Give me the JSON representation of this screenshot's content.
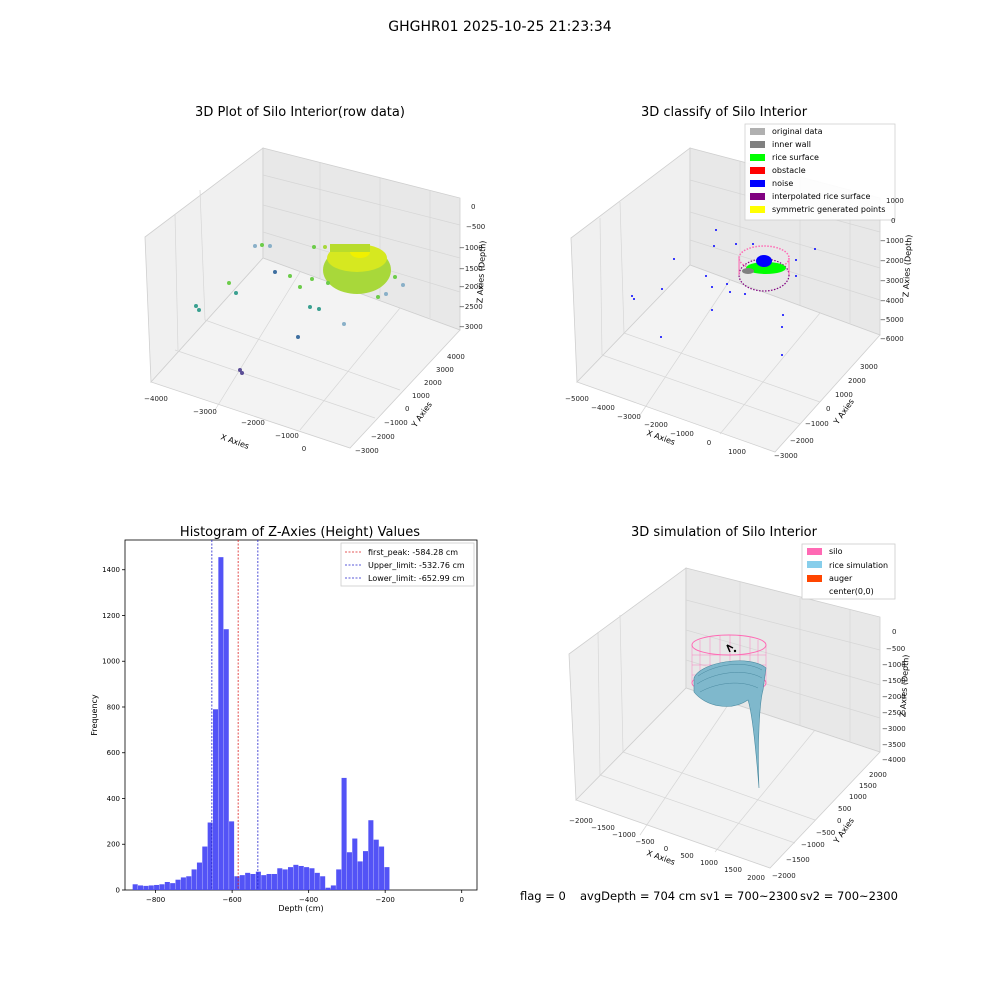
{
  "figure": {
    "suptitle": "GHGHR01 2025-10-25 21:23:34"
  },
  "status_line": {
    "flag": "flag = 0",
    "avg_depth": "avgDepth = 704 cm",
    "sv1": "sv1 = 700~2300",
    "sv2": "sv2 = 700~2300"
  },
  "chart_data": [
    {
      "type": "scatter",
      "title": "3D Plot of Silo Interior(row data)",
      "xlabel": "X Axies",
      "ylabel": "Y Axies",
      "zlabel": "Z Axies (Depth)",
      "x_ticks": [
        "−4000",
        "−3000",
        "−2000",
        "−1000",
        "0"
      ],
      "y_ticks": [
        "−3000",
        "−2000",
        "−1000",
        "0",
        "1000",
        "2000",
        "3000",
        "4000"
      ],
      "z_ticks": [
        "0",
        "−500",
        "−1000",
        "−1500",
        "−2000",
        "−2500",
        "−3000"
      ],
      "colors": {
        "surface": "#a8d83a",
        "points": [
          "#6ccc4a",
          "#3aa090",
          "#3e6fa0",
          "#8ab0c8",
          "#5b4e96"
        ]
      }
    },
    {
      "type": "scatter",
      "title": "3D classify of Silo Interior",
      "xlabel": "X Axies",
      "ylabel": "Y Axies",
      "zlabel": "Z Axies (Depth)",
      "x_ticks": [
        "−5000",
        "−4000",
        "−3000",
        "−2000",
        "−1000",
        "0",
        "1000"
      ],
      "y_ticks": [
        "−3000",
        "−2000",
        "−1000",
        "0",
        "1000",
        "2000",
        "3000"
      ],
      "z_ticks": [
        "1000",
        "0",
        "−1000",
        "−2000",
        "−3000",
        "−4000",
        "−5000",
        "−6000"
      ],
      "legend": [
        {
          "label": "original data",
          "color": "#b0b0b0"
        },
        {
          "label": "inner wall",
          "color": "#808080"
        },
        {
          "label": "rice surface",
          "color": "#00ff00"
        },
        {
          "label": "obstacle",
          "color": "#ff0000"
        },
        {
          "label": "noise",
          "color": "#0000ff"
        },
        {
          "label": "interpolated rice surface",
          "color": "#800080"
        },
        {
          "label": "symmetric generated points",
          "color": "#ffff00"
        }
      ]
    },
    {
      "type": "bar",
      "title": "Histogram of Z-Axies (Height) Values",
      "xlabel": "Depth (cm)",
      "ylabel": "Frequency",
      "xlim": [
        -880,
        40
      ],
      "ylim": [
        0,
        1530
      ],
      "bin_width": 14,
      "x_ticks": [
        -800,
        -600,
        -400,
        -200,
        0
      ],
      "y_ticks": [
        0,
        200,
        400,
        600,
        800,
        1000,
        1200,
        1400
      ],
      "bar_color": "#4a4af5",
      "bins": [
        [
          -860,
          25
        ],
        [
          -846,
          20
        ],
        [
          -832,
          18
        ],
        [
          -818,
          20
        ],
        [
          -804,
          22
        ],
        [
          -790,
          25
        ],
        [
          -776,
          35
        ],
        [
          -762,
          30
        ],
        [
          -748,
          45
        ],
        [
          -734,
          55
        ],
        [
          -720,
          60
        ],
        [
          -706,
          90
        ],
        [
          -692,
          120
        ],
        [
          -678,
          190
        ],
        [
          -664,
          295
        ],
        [
          -650,
          790
        ],
        [
          -636,
          1455
        ],
        [
          -622,
          1140
        ],
        [
          -608,
          300
        ],
        [
          -594,
          60
        ],
        [
          -580,
          65
        ],
        [
          -566,
          75
        ],
        [
          -552,
          70
        ],
        [
          -538,
          80
        ],
        [
          -524,
          65
        ],
        [
          -510,
          70
        ],
        [
          -496,
          70
        ],
        [
          -482,
          95
        ],
        [
          -468,
          90
        ],
        [
          -454,
          100
        ],
        [
          -440,
          110
        ],
        [
          -426,
          105
        ],
        [
          -412,
          100
        ],
        [
          -398,
          95
        ],
        [
          -384,
          75
        ],
        [
          -370,
          60
        ],
        [
          -356,
          10
        ],
        [
          -342,
          20
        ],
        [
          -328,
          90
        ],
        [
          -314,
          490
        ],
        [
          -300,
          165
        ],
        [
          -286,
          225
        ],
        [
          -272,
          125
        ],
        [
          -258,
          170
        ],
        [
          -244,
          305
        ],
        [
          -230,
          220
        ],
        [
          -216,
          190
        ],
        [
          -202,
          100
        ]
      ],
      "vlines": [
        {
          "label": "first_peak: -584.28 cm",
          "x": -584.28,
          "color": "#dd2222"
        },
        {
          "label": "Upper_limit: -532.76 cm",
          "x": -532.76,
          "color": "#2222cc"
        },
        {
          "label": "Lower_limit: -652.99 cm",
          "x": -652.99,
          "color": "#2222cc"
        }
      ]
    },
    {
      "type": "area",
      "title": "3D simulation of Silo Interior",
      "xlabel": "X Axies",
      "ylabel": "Y Axies",
      "zlabel": "Z Axies (Depth)",
      "x_ticks": [
        "−2000",
        "−1500",
        "−1000",
        "−500",
        "0",
        "500",
        "1000",
        "1500",
        "2000"
      ],
      "y_ticks": [
        "−2000",
        "−1500",
        "−1000",
        "−500",
        "0",
        "500",
        "1000",
        "1500",
        "2000"
      ],
      "z_ticks": [
        "0",
        "−500",
        "−1000",
        "−1500",
        "−2000",
        "−2500",
        "−3000",
        "−3500",
        "−4000"
      ],
      "legend": [
        {
          "label": "silo",
          "color": "#ff69b4"
        },
        {
          "label": "rice simulation",
          "color": "#87ceeb"
        },
        {
          "label": "auger",
          "color": "#ff4500"
        },
        {
          "label": "center(0,0)",
          "color": ""
        }
      ]
    }
  ]
}
